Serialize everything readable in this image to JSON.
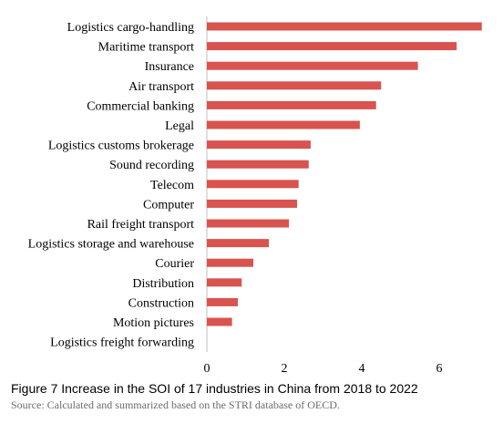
{
  "chart_data": {
    "type": "bar",
    "orientation": "horizontal",
    "categories": [
      "Logistics cargo-handling",
      "Maritime transport",
      "Insurance",
      "Air transport",
      "Commercial banking",
      "Legal",
      "Logistics customs brokerage",
      "Sound recording",
      "Telecom",
      "Computer",
      "Rail freight transport",
      "Logistics storage and warehouse",
      "Courier",
      "Distribution",
      "Construction",
      "Motion pictures",
      "Logistics freight forwarding"
    ],
    "values": [
      7.1,
      6.45,
      5.45,
      4.5,
      4.37,
      3.95,
      2.68,
      2.63,
      2.37,
      2.33,
      2.12,
      1.6,
      1.2,
      0.9,
      0.8,
      0.65,
      0.0
    ],
    "xlim": [
      0,
      7
    ],
    "xticks": [
      "0",
      "2",
      "4",
      "6"
    ],
    "bar_color": "#d9534f",
    "grid": false,
    "title": "",
    "xlabel": "",
    "ylabel": ""
  },
  "caption": "Figure 7 Increase in the SOI of 17 industries in China from 2018 to 2022",
  "source": "Source: Calculated and summarized based on the STRI database of OECD."
}
